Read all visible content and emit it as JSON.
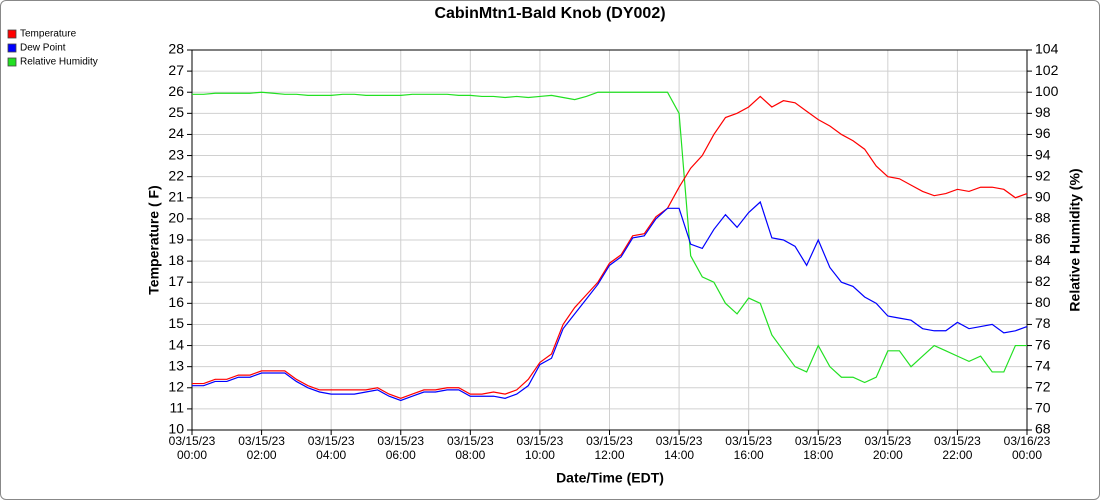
{
  "chart_data": {
    "type": "line",
    "title": "CabinMtn1-Bald Knob (DY002)",
    "x_label": "Date/Time (EDT)",
    "y_label": "Temperature ( F)",
    "y2_label": "Relative Humidity (%)",
    "grid": true,
    "legend": "top-left",
    "x": [
      "03/15/23 00:00",
      "03/15/23 00:20",
      "03/15/23 00:40",
      "03/15/23 01:00",
      "03/15/23 01:20",
      "03/15/23 01:40",
      "03/15/23 02:00",
      "03/15/23 02:20",
      "03/15/23 02:40",
      "03/15/23 03:00",
      "03/15/23 03:20",
      "03/15/23 03:40",
      "03/15/23 04:00",
      "03/15/23 04:20",
      "03/15/23 04:40",
      "03/15/23 05:00",
      "03/15/23 05:20",
      "03/15/23 05:40",
      "03/15/23 06:00",
      "03/15/23 06:20",
      "03/15/23 06:40",
      "03/15/23 07:00",
      "03/15/23 07:20",
      "03/15/23 07:40",
      "03/15/23 08:00",
      "03/15/23 08:20",
      "03/15/23 08:40",
      "03/15/23 09:00",
      "03/15/23 09:20",
      "03/15/23 09:40",
      "03/15/23 10:00",
      "03/15/23 10:20",
      "03/15/23 10:40",
      "03/15/23 11:00",
      "03/15/23 11:20",
      "03/15/23 11:40",
      "03/15/23 12:00",
      "03/15/23 12:20",
      "03/15/23 12:40",
      "03/15/23 13:00",
      "03/15/23 13:20",
      "03/15/23 13:40",
      "03/15/23 14:00",
      "03/15/23 14:20",
      "03/15/23 14:40",
      "03/15/23 15:00",
      "03/15/23 15:20",
      "03/15/23 15:40",
      "03/15/23 16:00",
      "03/15/23 16:20",
      "03/15/23 16:40",
      "03/15/23 17:00",
      "03/15/23 17:20",
      "03/15/23 17:40",
      "03/15/23 18:00",
      "03/15/23 18:20",
      "03/15/23 18:40",
      "03/15/23 19:00",
      "03/15/23 19:20",
      "03/15/23 19:40",
      "03/15/23 20:00",
      "03/15/23 20:20",
      "03/15/23 20:40",
      "03/15/23 21:00",
      "03/15/23 21:20",
      "03/15/23 21:40",
      "03/15/23 22:00",
      "03/15/23 22:20",
      "03/15/23 22:40",
      "03/15/23 23:00",
      "03/15/23 23:20",
      "03/15/23 23:40",
      "03/16/23 00:00"
    ],
    "xlim": [
      "03/15/23 00:00",
      "03/16/23 00:00"
    ],
    "xticks": [
      "03/15/23 00:00",
      "03/15/23 02:00",
      "03/15/23 04:00",
      "03/15/23 06:00",
      "03/15/23 08:00",
      "03/15/23 10:00",
      "03/15/23 12:00",
      "03/15/23 14:00",
      "03/15/23 16:00",
      "03/15/23 18:00",
      "03/15/23 20:00",
      "03/15/23 22:00",
      "03/16/23 00:00"
    ],
    "ylim": [
      10,
      28
    ],
    "yticks": [
      10,
      11,
      12,
      13,
      14,
      15,
      16,
      17,
      18,
      19,
      20,
      21,
      22,
      23,
      24,
      25,
      26,
      27,
      28
    ],
    "y2lim": [
      68,
      104
    ],
    "y2ticks": [
      68,
      70,
      72,
      74,
      76,
      78,
      80,
      82,
      84,
      86,
      88,
      90,
      92,
      94,
      96,
      98,
      100,
      102,
      104
    ],
    "series": [
      {
        "name": "Temperature",
        "color": "#ff0000",
        "values": [
          12.2,
          12.2,
          12.4,
          12.4,
          12.6,
          12.6,
          12.8,
          12.8,
          12.8,
          12.4,
          12.1,
          11.9,
          11.9,
          11.9,
          11.9,
          11.9,
          12.0,
          11.7,
          11.5,
          11.7,
          11.9,
          11.9,
          12.0,
          12.0,
          11.7,
          11.7,
          11.8,
          11.7,
          11.9,
          12.4,
          13.2,
          13.6,
          15.0,
          15.8,
          16.4,
          17.0,
          17.9,
          18.3,
          19.2,
          19.3,
          20.1,
          20.5,
          21.5,
          22.4,
          23.0,
          24.0,
          24.8,
          25.0,
          25.3,
          25.8,
          25.3,
          25.6,
          25.5,
          25.1,
          24.7,
          24.4,
          24.0,
          23.7,
          23.3,
          22.5,
          22.0,
          21.9,
          21.6,
          21.3,
          21.1,
          21.2,
          21.4,
          21.3,
          21.5,
          21.5,
          21.4,
          21.0,
          21.2
        ]
      },
      {
        "name": "Dew Point",
        "color": "#0000ff",
        "values": [
          12.1,
          12.1,
          12.3,
          12.3,
          12.5,
          12.5,
          12.7,
          12.7,
          12.7,
          12.3,
          12.0,
          11.8,
          11.7,
          11.7,
          11.7,
          11.8,
          11.9,
          11.6,
          11.4,
          11.6,
          11.8,
          11.8,
          11.9,
          11.9,
          11.6,
          11.6,
          11.6,
          11.5,
          11.7,
          12.1,
          13.1,
          13.4,
          14.8,
          15.5,
          16.2,
          16.9,
          17.8,
          18.2,
          19.1,
          19.2,
          20.0,
          20.5,
          20.5,
          18.8,
          18.6,
          19.5,
          20.2,
          19.6,
          20.3,
          20.8,
          19.1,
          19.0,
          18.7,
          17.8,
          19.0,
          17.7,
          17.0,
          16.8,
          16.3,
          16.0,
          15.4,
          15.3,
          15.2,
          14.8,
          14.7,
          14.7,
          15.1,
          14.8,
          14.9,
          15.0,
          14.6,
          14.7,
          14.9
        ]
      },
      {
        "name": "Relative Humidity",
        "color": "#22e022",
        "axis": "y2",
        "values": [
          99.8,
          99.8,
          99.9,
          99.9,
          99.9,
          99.9,
          100,
          99.9,
          99.8,
          99.8,
          99.7,
          99.7,
          99.7,
          99.8,
          99.8,
          99.7,
          99.7,
          99.7,
          99.7,
          99.8,
          99.8,
          99.8,
          99.8,
          99.7,
          99.7,
          99.6,
          99.6,
          99.5,
          99.6,
          99.5,
          99.6,
          99.7,
          99.5,
          99.3,
          99.6,
          100,
          100,
          100,
          100,
          100,
          100,
          100,
          98,
          84.5,
          82.5,
          82,
          80,
          79,
          80.5,
          80,
          77,
          75.5,
          74,
          73.5,
          76,
          74,
          73,
          73,
          72.5,
          73,
          75.5,
          75.5,
          74,
          75,
          76,
          75.5,
          75,
          74.5,
          75,
          73.5,
          73.5,
          76,
          76
        ]
      }
    ]
  }
}
